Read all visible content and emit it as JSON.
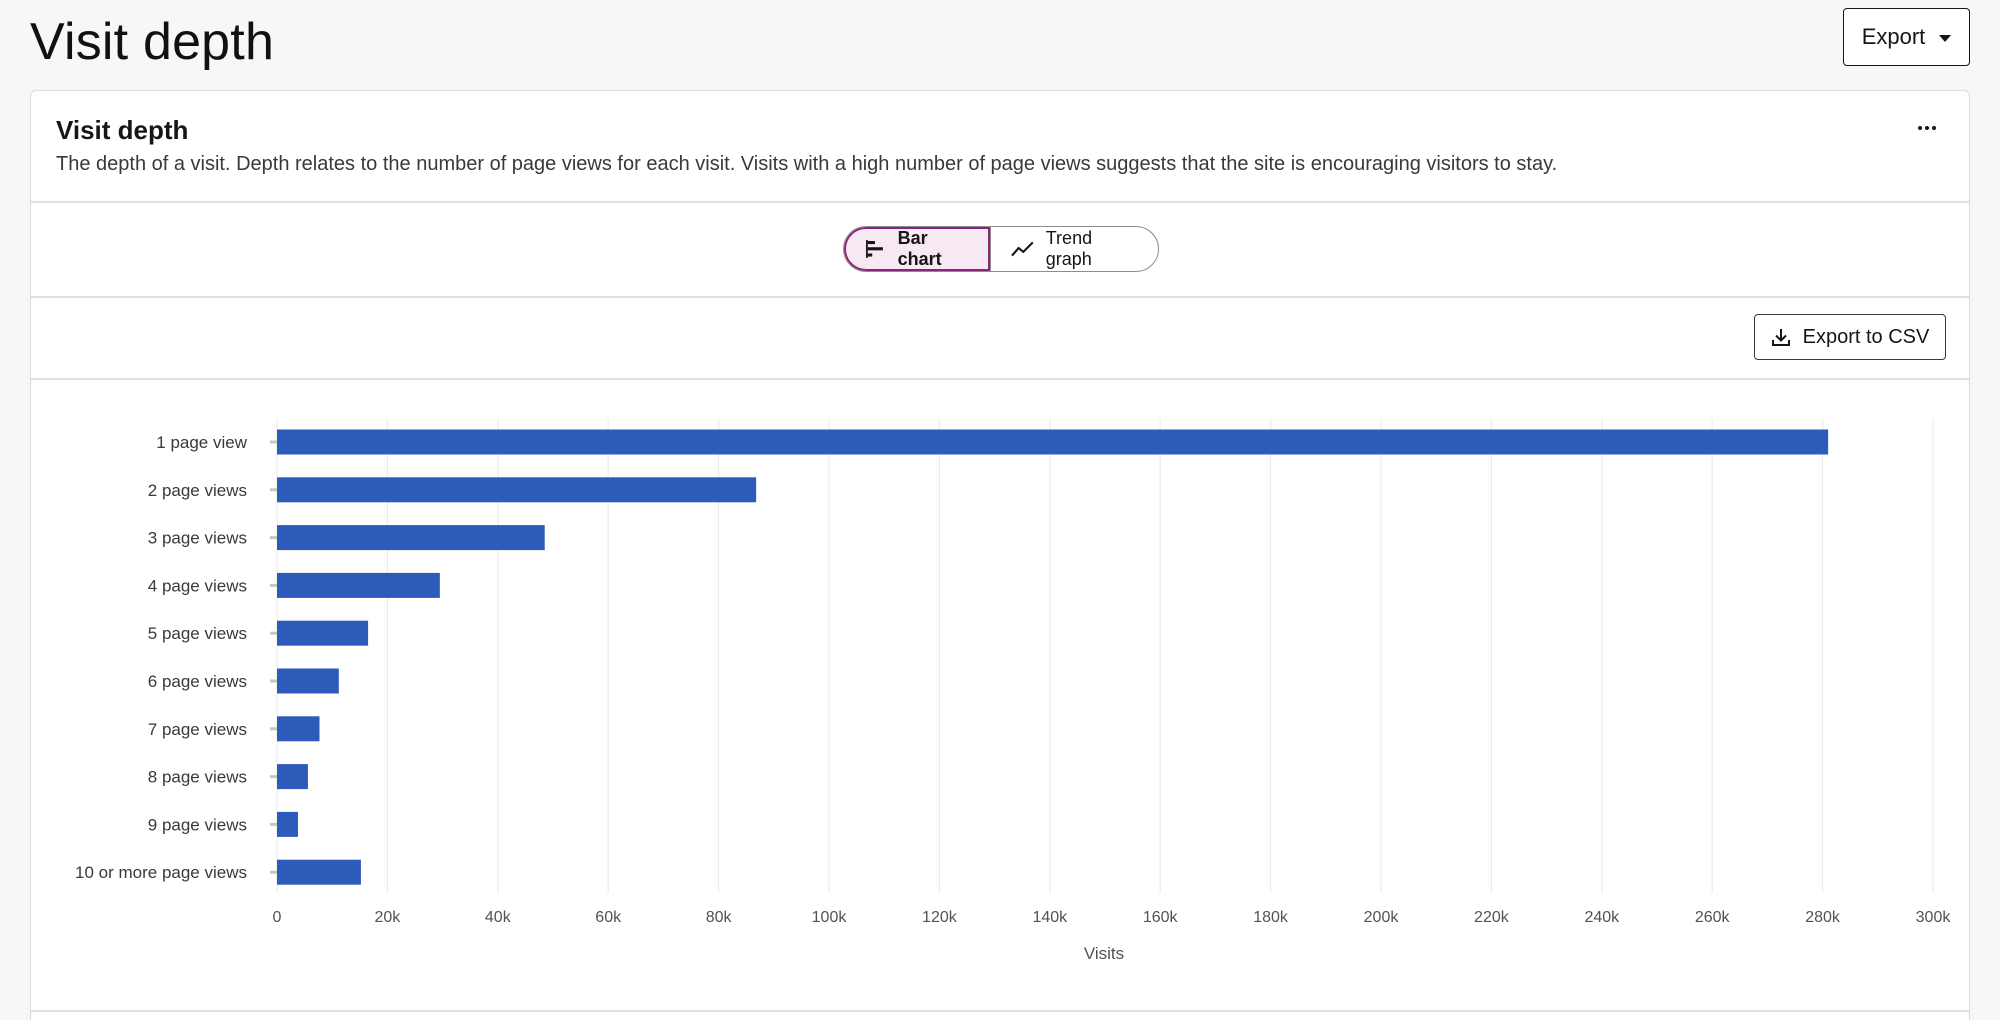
{
  "page": {
    "title": "Visit depth",
    "export_label": "Export"
  },
  "card": {
    "title": "Visit depth",
    "description": "The depth of a visit. Depth relates to the number of page views for each visit. Visits with a high number of page views suggests that the site is encouraging visitors to stay.",
    "more_icon": "overflow-menu-icon"
  },
  "view_toggle": {
    "options": [
      {
        "label": "Bar chart",
        "icon": "bar-chart-icon",
        "selected": true
      },
      {
        "label": "Trend graph",
        "icon": "trend-line-icon",
        "selected": false
      }
    ]
  },
  "toolbar": {
    "csv_label": "Export to CSV",
    "csv_icon": "download-icon"
  },
  "colors": {
    "bar": "#2d5bba",
    "accent": "#8a2478",
    "accent_bg": "#f6e9f3"
  },
  "chart_data": {
    "type": "bar",
    "orientation": "horizontal",
    "categories": [
      "1 page view",
      "2 page views",
      "3 page views",
      "4 page views",
      "5 page views",
      "6 page views",
      "7 page views",
      "8 page views",
      "9 page views",
      "10 or more page views"
    ],
    "values": [
      281000,
      86800,
      48500,
      29500,
      16500,
      11200,
      7700,
      5600,
      3800,
      15200
    ],
    "xlabel": "Visits",
    "xlim": [
      0,
      300000
    ],
    "xticks": [
      "0",
      "20k",
      "40k",
      "60k",
      "80k",
      "100k",
      "120k",
      "140k",
      "160k",
      "180k",
      "200k",
      "220k",
      "240k",
      "260k",
      "280k",
      "300k"
    ],
    "grid": "vertical"
  }
}
